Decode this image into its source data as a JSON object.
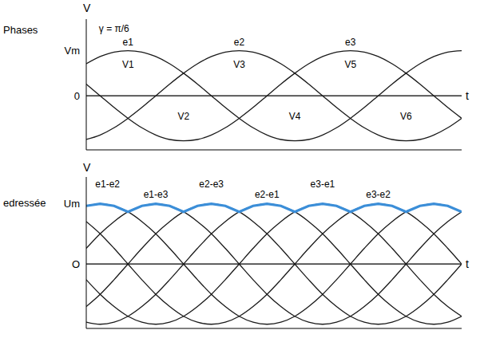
{
  "chart_data": [
    {
      "type": "line",
      "title": "Phases",
      "y_label": "V",
      "x_label": "t",
      "grid": false,
      "tick_labels": "y",
      "xlim": [
        45,
        450
      ],
      "ylim": [
        -1.2,
        1.7
      ],
      "yticks": [
        0,
        {
          "value": 1,
          "label": "Vm"
        }
      ],
      "x": [
        45,
        60,
        75,
        90,
        105,
        120,
        135,
        150,
        165,
        180,
        195,
        210,
        225,
        240,
        255,
        270,
        285,
        300,
        315,
        330,
        345,
        360,
        375,
        390,
        405,
        420,
        435,
        450
      ],
      "series": [
        {
          "name": "e1",
          "color": "#1a1a1a",
          "values": [
            0.71,
            0.87,
            0.97,
            1,
            0.97,
            0.87,
            0.71,
            0.5,
            0.26,
            0,
            -0.26,
            -0.5,
            -0.71,
            -0.87,
            -0.97,
            -1,
            -0.97,
            -0.87,
            -0.71,
            -0.5,
            -0.26,
            0,
            0.26,
            0.5,
            0.71,
            0.87,
            0.97,
            1
          ]
        },
        {
          "name": "e2",
          "color": "#1a1a1a",
          "values": [
            -0.97,
            -0.87,
            -0.71,
            -0.5,
            -0.26,
            0,
            0.26,
            0.5,
            0.71,
            0.87,
            0.97,
            1,
            0.97,
            0.87,
            0.71,
            0.5,
            0.26,
            0,
            -0.26,
            -0.5,
            -0.71,
            -0.87,
            -0.97,
            -1,
            -0.97,
            -0.87,
            -0.71,
            -0.5
          ]
        },
        {
          "name": "e3",
          "color": "#1a1a1a",
          "values": [
            0.26,
            0,
            -0.26,
            -0.5,
            -0.71,
            -0.87,
            -0.97,
            -1,
            -0.97,
            -0.87,
            -0.71,
            -0.5,
            -0.26,
            0,
            0.26,
            0.5,
            0.71,
            0.87,
            0.97,
            1,
            0.97,
            0.87,
            0.71,
            0.5,
            0.26,
            0,
            -0.26,
            -0.5
          ]
        }
      ],
      "annotations": [
        {
          "text": "γ = π/6",
          "x": 75,
          "y": 1.5
        },
        {
          "text": "e1",
          "x": 90,
          "y": 1.2
        },
        {
          "text": "V1",
          "x": 90,
          "y": 0.7
        },
        {
          "text": "e2",
          "x": 210,
          "y": 1.2
        },
        {
          "text": "V3",
          "x": 210,
          "y": 0.7
        },
        {
          "text": "e3",
          "x": 330,
          "y": 1.2
        },
        {
          "text": "V5",
          "x": 330,
          "y": 0.7
        },
        {
          "text": "V2",
          "x": 150,
          "y": -0.45
        },
        {
          "text": "V4",
          "x": 270,
          "y": -0.45
        },
        {
          "text": "V6",
          "x": 390,
          "y": -0.45
        }
      ]
    },
    {
      "type": "line",
      "title": "edressée",
      "y_label": "V",
      "x_label": "t",
      "grid": false,
      "tick_labels": "y",
      "xlim": [
        45,
        450
      ],
      "ylim": [
        -1.85,
        2.5
      ],
      "yticks": [
        {
          "value": 0,
          "label": "O"
        },
        {
          "value": 1.73,
          "label": "Um"
        }
      ],
      "x": [
        45,
        60,
        75,
        90,
        105,
        120,
        135,
        150,
        165,
        180,
        195,
        210,
        225,
        240,
        255,
        270,
        285,
        300,
        315,
        330,
        345,
        360,
        375,
        390,
        405,
        420,
        435,
        450
      ],
      "series": [
        {
          "name": "e1-e2",
          "color": "#1a1a1a",
          "values": [
            1.67,
            1.73,
            1.67,
            1.5,
            1.22,
            0.87,
            0.45,
            0,
            -0.45,
            -0.87,
            -1.22,
            -1.5,
            -1.67,
            -1.73,
            -1.67,
            -1.5,
            -1.22,
            -0.87,
            -0.45,
            0,
            0.45,
            0.87,
            1.22,
            1.5,
            1.67,
            1.73,
            1.67,
            1.5
          ]
        },
        {
          "name": "e1-e3",
          "color": "#1a1a1a",
          "values": [
            0.45,
            0.87,
            1.22,
            1.5,
            1.67,
            1.73,
            1.67,
            1.5,
            1.22,
            0.87,
            0.45,
            0,
            -0.45,
            -0.87,
            -1.22,
            -1.5,
            -1.67,
            -1.73,
            -1.67,
            -1.5,
            -1.22,
            -0.87,
            -0.45,
            0,
            0.45,
            0.87,
            1.22,
            1.5
          ]
        },
        {
          "name": "e2-e3",
          "color": "#1a1a1a",
          "values": [
            -1.22,
            -0.87,
            -0.45,
            0,
            0.45,
            0.87,
            1.22,
            1.5,
            1.67,
            1.73,
            1.67,
            1.5,
            1.22,
            0.87,
            0.45,
            0,
            -0.45,
            -0.87,
            -1.22,
            -1.5,
            -1.67,
            -1.73,
            -1.67,
            -1.5,
            -1.22,
            -0.87,
            -0.45,
            0
          ]
        },
        {
          "name": "e2-e1",
          "color": "#1a1a1a",
          "values": [
            -1.67,
            -1.73,
            -1.67,
            -1.5,
            -1.22,
            -0.87,
            -0.45,
            0,
            0.45,
            0.87,
            1.22,
            1.5,
            1.67,
            1.73,
            1.67,
            1.5,
            1.22,
            0.87,
            0.45,
            0,
            -0.45,
            -0.87,
            -1.22,
            -1.5,
            -1.67,
            -1.73,
            -1.67,
            -1.5
          ]
        },
        {
          "name": "e3-e1",
          "color": "#1a1a1a",
          "values": [
            -0.45,
            -0.87,
            -1.22,
            -1.5,
            -1.67,
            -1.73,
            -1.67,
            -1.5,
            -1.22,
            -0.87,
            -0.45,
            0,
            0.45,
            0.87,
            1.22,
            1.5,
            1.67,
            1.73,
            1.67,
            1.5,
            1.22,
            0.87,
            0.45,
            0,
            -0.45,
            -0.87,
            -1.22,
            -1.5
          ]
        },
        {
          "name": "e3-e2",
          "color": "#1a1a1a",
          "values": [
            1.22,
            0.87,
            0.45,
            0,
            -0.45,
            -0.87,
            -1.22,
            -1.5,
            -1.67,
            -1.73,
            -1.67,
            -1.5,
            -1.22,
            -0.87,
            -0.45,
            0,
            0.45,
            0.87,
            1.22,
            1.5,
            1.67,
            1.73,
            1.67,
            1.5,
            1.22,
            0.87,
            0.45,
            0
          ]
        },
        {
          "color": "#3b8ed8",
          "values": [
            1.67,
            1.73,
            1.67,
            1.5,
            1.67,
            1.73,
            1.67,
            1.5,
            1.67,
            1.73,
            1.67,
            1.5,
            1.67,
            1.73,
            1.67,
            1.5,
            1.67,
            1.73,
            1.67,
            1.5,
            1.67,
            1.73,
            1.67,
            1.5,
            1.67,
            1.73,
            1.67,
            1.5
          ]
        }
      ],
      "annotations": [
        {
          "text": "e1-e2",
          "x": 68,
          "y": 2.3
        },
        {
          "text": "e1-e3",
          "x": 120,
          "y": 2.0
        },
        {
          "text": "e2-e3",
          "x": 180,
          "y": 2.3
        },
        {
          "text": "e2-e1",
          "x": 240,
          "y": 2.0
        },
        {
          "text": "e3-e1",
          "x": 300,
          "y": 2.3
        },
        {
          "text": "e3-e2",
          "x": 360,
          "y": 2.0
        }
      ]
    }
  ]
}
